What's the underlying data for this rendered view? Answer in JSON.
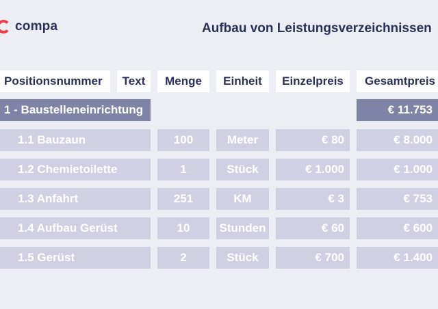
{
  "brand": {
    "name": "compa"
  },
  "title": "Aufbau von Leistungsverzeichnissen",
  "columns": [
    "Positionsnummer",
    "Text",
    "Menge",
    "Einheit",
    "Einzelpreis",
    "Gesamtpreis"
  ],
  "section": {
    "label": "1 - Baustelleneinrichtung",
    "total": "€ 11.753"
  },
  "rows": [
    {
      "name": "1.1 Bauzaun",
      "menge": "100",
      "einheit": "Meter",
      "einzelpreis": "€ 80",
      "gesamtpreis": "€ 8.000"
    },
    {
      "name": "1.2 Chemietoilette",
      "menge": "1",
      "einheit": "Stück",
      "einzelpreis": "€ 1.000",
      "gesamtpreis": "€ 1.000"
    },
    {
      "name": "1.3 Anfahrt",
      "menge": "251",
      "einheit": "KM",
      "einzelpreis": "€ 3",
      "gesamtpreis": "€ 753"
    },
    {
      "name": "1.4 Aufbau Gerüst",
      "menge": "10",
      "einheit": "Stunden",
      "einzelpreis": "€ 60",
      "gesamtpreis": "€ 600"
    },
    {
      "name": "1.5 Gerüst",
      "menge": "2",
      "einheit": "Stück",
      "einzelpreis": "€ 700",
      "gesamtpreis": "€ 1.400"
    }
  ],
  "colors": {
    "accent": "#e8404a",
    "navy": "#2b3158",
    "section": "#7f84a6",
    "row": "#cfd1e2",
    "background": "#eceef3"
  }
}
